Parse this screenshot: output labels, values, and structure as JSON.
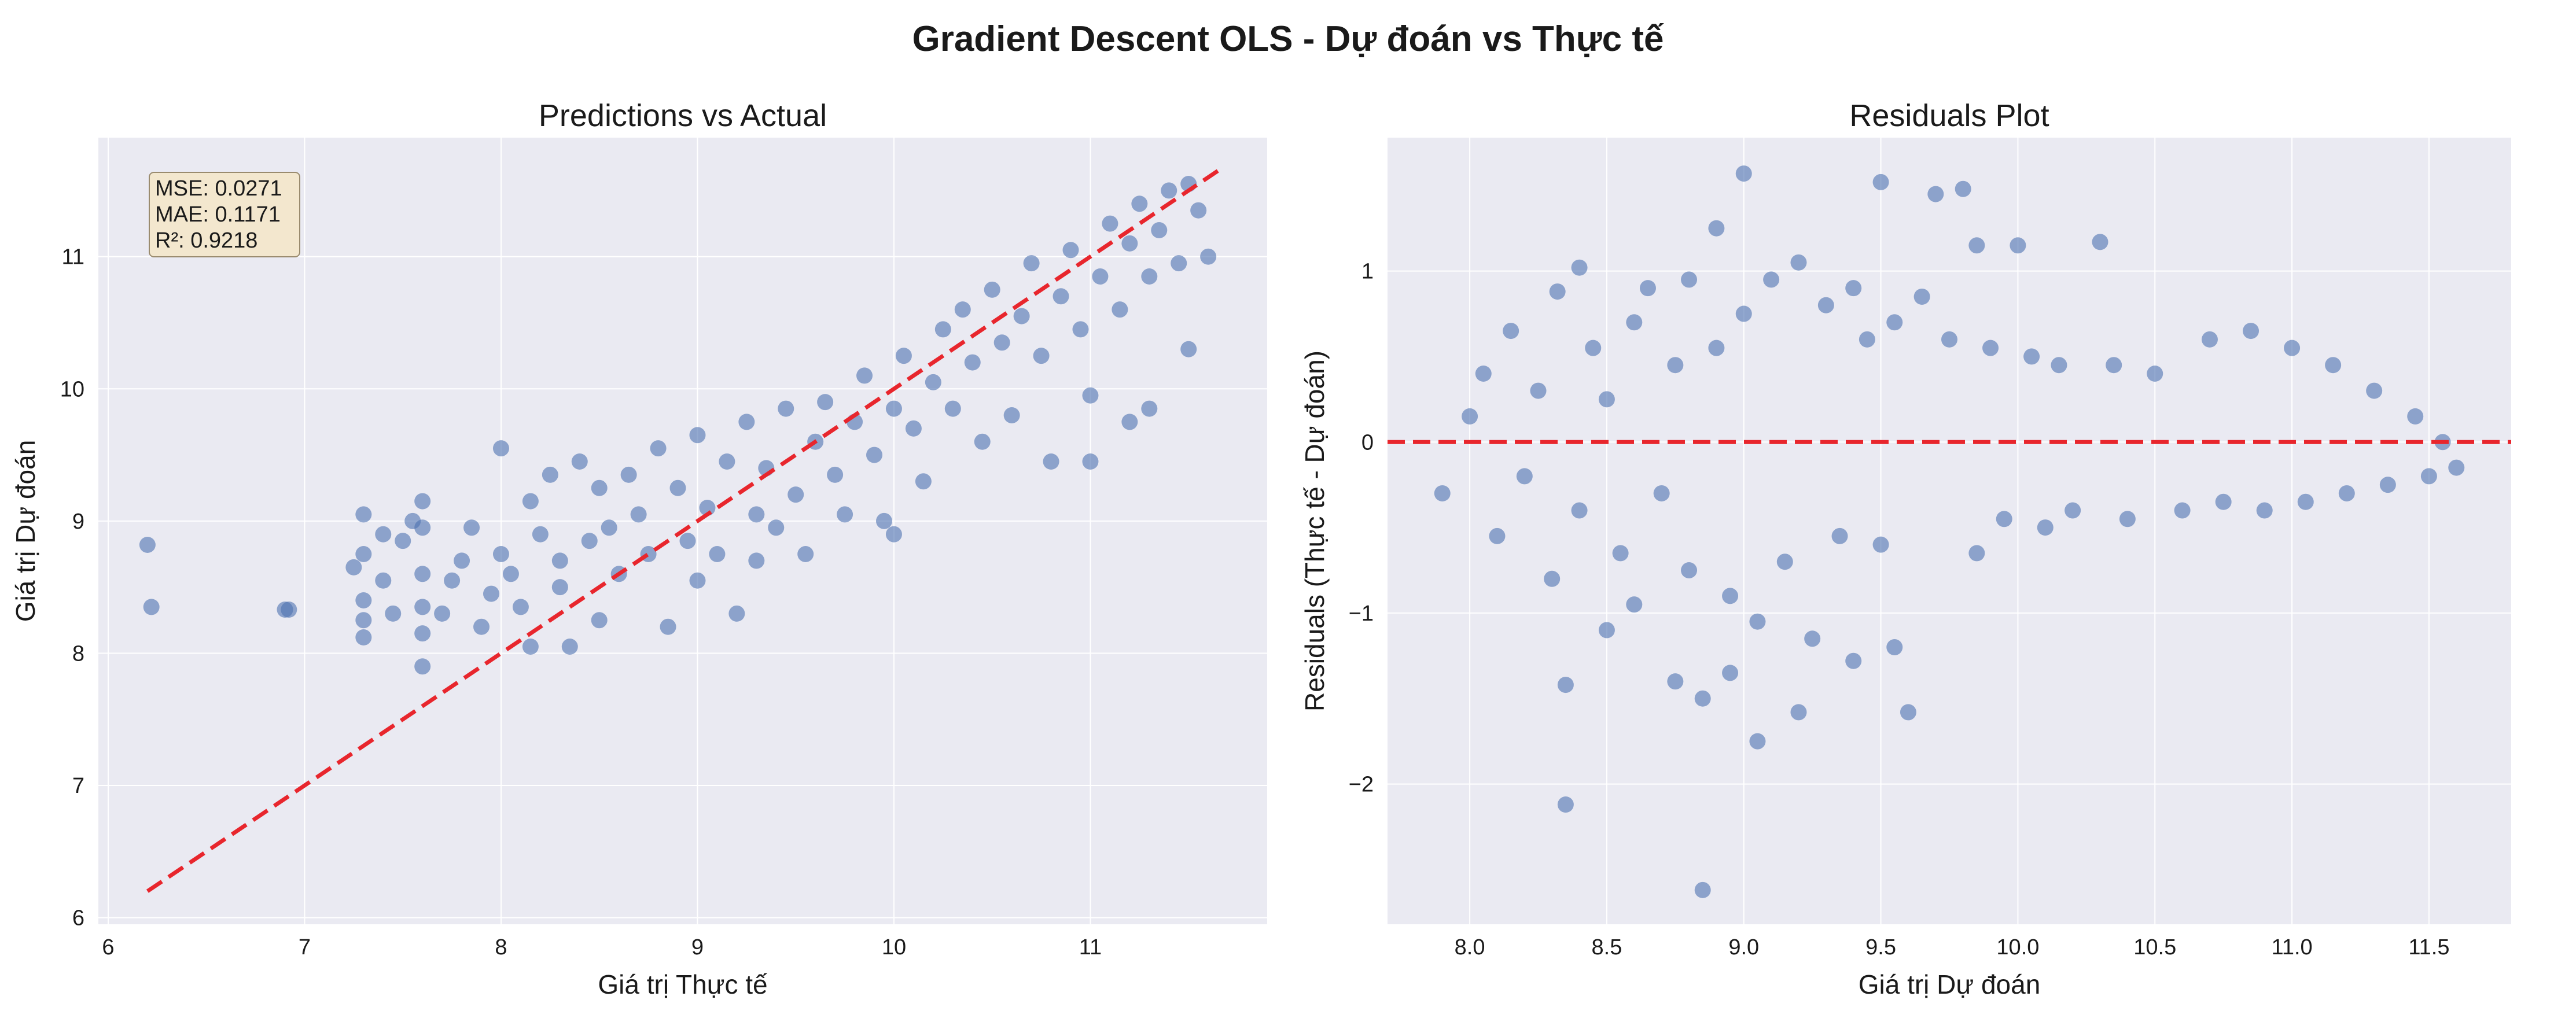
{
  "figure": {
    "title": "Gradient Descent OLS - Dự đoán vs Thực tế"
  },
  "colors": {
    "background": "#eaeaf2",
    "points": "#4c72b0",
    "reference_line": "#e8262d",
    "grid": "#ffffff",
    "metrics_box": "#f5e6c8"
  },
  "chart_data": [
    {
      "type": "scatter",
      "title": "Predictions vs Actual",
      "xlabel": "Giá trị Thực tế",
      "ylabel": "Giá trị Dự đoán",
      "xlim": [
        5.95,
        11.9
      ],
      "ylim": [
        5.95,
        11.9
      ],
      "xticks": [
        6,
        7,
        8,
        9,
        10,
        11
      ],
      "yticks": [
        6,
        7,
        8,
        9,
        10,
        11
      ],
      "grid": true,
      "annotations": [
        "MSE: 0.0271",
        "MAE: 0.1171",
        "R²: 0.9218"
      ],
      "annotation_placement": "top-left",
      "reference_line": {
        "style": "dashed",
        "from": [
          6.2,
          6.2
        ],
        "to": [
          11.65,
          11.65
        ]
      },
      "series": [
        {
          "name": "",
          "points": [
            [
              6.2,
              8.82
            ],
            [
              6.22,
              8.35
            ],
            [
              6.9,
              8.33
            ],
            [
              6.92,
              8.33
            ],
            [
              7.25,
              8.65
            ],
            [
              7.3,
              9.05
            ],
            [
              7.3,
              8.75
            ],
            [
              7.3,
              8.4
            ],
            [
              7.3,
              8.25
            ],
            [
              7.3,
              8.12
            ],
            [
              7.4,
              8.9
            ],
            [
              7.4,
              8.55
            ],
            [
              7.45,
              8.3
            ],
            [
              7.5,
              8.85
            ],
            [
              7.55,
              9.0
            ],
            [
              7.6,
              9.15
            ],
            [
              7.6,
              8.95
            ],
            [
              7.6,
              8.6
            ],
            [
              7.6,
              8.35
            ],
            [
              7.6,
              8.15
            ],
            [
              7.6,
              7.9
            ],
            [
              7.7,
              8.3
            ],
            [
              7.75,
              8.55
            ],
            [
              7.8,
              8.7
            ],
            [
              7.85,
              8.95
            ],
            [
              7.9,
              8.2
            ],
            [
              7.95,
              8.45
            ],
            [
              8.0,
              9.55
            ],
            [
              8.0,
              8.75
            ],
            [
              8.05,
              8.6
            ],
            [
              8.1,
              8.35
            ],
            [
              8.15,
              9.15
            ],
            [
              8.15,
              8.05
            ],
            [
              8.2,
              8.9
            ],
            [
              8.25,
              9.35
            ],
            [
              8.3,
              8.7
            ],
            [
              8.3,
              8.5
            ],
            [
              8.35,
              8.05
            ],
            [
              8.4,
              9.45
            ],
            [
              8.45,
              8.85
            ],
            [
              8.5,
              9.25
            ],
            [
              8.5,
              8.25
            ],
            [
              8.55,
              8.95
            ],
            [
              8.6,
              8.6
            ],
            [
              8.65,
              9.35
            ],
            [
              8.7,
              9.05
            ],
            [
              8.75,
              8.75
            ],
            [
              8.8,
              9.55
            ],
            [
              8.85,
              8.2
            ],
            [
              8.9,
              9.25
            ],
            [
              8.95,
              8.85
            ],
            [
              9.0,
              9.65
            ],
            [
              9.0,
              8.55
            ],
            [
              9.05,
              9.1
            ],
            [
              9.1,
              8.75
            ],
            [
              9.15,
              9.45
            ],
            [
              9.2,
              8.3
            ],
            [
              9.25,
              9.75
            ],
            [
              9.3,
              9.05
            ],
            [
              9.3,
              8.7
            ],
            [
              9.35,
              9.4
            ],
            [
              9.4,
              8.95
            ],
            [
              9.45,
              9.85
            ],
            [
              9.5,
              9.2
            ],
            [
              9.55,
              8.75
            ],
            [
              9.6,
              9.6
            ],
            [
              9.65,
              9.9
            ],
            [
              9.7,
              9.35
            ],
            [
              9.75,
              9.05
            ],
            [
              9.8,
              9.75
            ],
            [
              9.85,
              10.1
            ],
            [
              9.9,
              9.5
            ],
            [
              9.95,
              9.0
            ],
            [
              10.0,
              9.85
            ],
            [
              10.0,
              8.9
            ],
            [
              10.05,
              10.25
            ],
            [
              10.1,
              9.7
            ],
            [
              10.15,
              9.3
            ],
            [
              10.2,
              10.05
            ],
            [
              10.25,
              10.45
            ],
            [
              10.3,
              9.85
            ],
            [
              10.35,
              10.6
            ],
            [
              10.4,
              10.2
            ],
            [
              10.45,
              9.6
            ],
            [
              10.5,
              10.75
            ],
            [
              10.55,
              10.35
            ],
            [
              10.6,
              9.8
            ],
            [
              10.65,
              10.55
            ],
            [
              10.7,
              10.95
            ],
            [
              10.75,
              10.25
            ],
            [
              10.8,
              9.45
            ],
            [
              10.85,
              10.7
            ],
            [
              10.9,
              11.05
            ],
            [
              10.95,
              10.45
            ],
            [
              11.0,
              9.95
            ],
            [
              11.05,
              10.85
            ],
            [
              11.1,
              11.25
            ],
            [
              11.15,
              10.6
            ],
            [
              11.2,
              11.1
            ],
            [
              11.25,
              11.4
            ],
            [
              11.3,
              10.85
            ],
            [
              11.35,
              11.2
            ],
            [
              11.4,
              11.5
            ],
            [
              11.45,
              10.95
            ],
            [
              11.5,
              11.55
            ],
            [
              11.55,
              11.35
            ],
            [
              11.6,
              11.0
            ],
            [
              11.5,
              10.3
            ],
            [
              11.3,
              9.85
            ],
            [
              11.2,
              9.75
            ],
            [
              11.0,
              9.45
            ]
          ]
        }
      ]
    },
    {
      "type": "scatter",
      "title": "Residuals Plot",
      "xlabel": "Giá trị Dự đoán",
      "ylabel": "Residuals (Thực tế - Dự đoán)",
      "xlim": [
        7.7,
        11.8
      ],
      "ylim": [
        -2.82,
        1.78
      ],
      "xticks": [
        8.0,
        8.5,
        9.0,
        9.5,
        10.0,
        10.5,
        11.0,
        11.5
      ],
      "yticks": [
        -2,
        -1,
        0,
        1
      ],
      "grid": true,
      "reference_line": {
        "style": "dashed",
        "y": 0
      },
      "series": [
        {
          "name": "",
          "points": [
            [
              7.9,
              -0.3
            ],
            [
              8.0,
              0.15
            ],
            [
              8.05,
              0.4
            ],
            [
              8.1,
              -0.55
            ],
            [
              8.15,
              0.65
            ],
            [
              8.2,
              -0.2
            ],
            [
              8.25,
              0.3
            ],
            [
              8.3,
              -0.8
            ],
            [
              8.32,
              0.88
            ],
            [
              8.35,
              -2.12
            ],
            [
              8.35,
              -1.42
            ],
            [
              8.4,
              1.02
            ],
            [
              8.4,
              -0.4
            ],
            [
              8.45,
              0.55
            ],
            [
              8.5,
              -1.1
            ],
            [
              8.5,
              0.25
            ],
            [
              8.55,
              -0.65
            ],
            [
              8.6,
              0.7
            ],
            [
              8.6,
              -0.95
            ],
            [
              8.65,
              0.9
            ],
            [
              8.7,
              -0.3
            ],
            [
              8.75,
              -1.4
            ],
            [
              8.75,
              0.45
            ],
            [
              8.8,
              -0.75
            ],
            [
              8.8,
              0.95
            ],
            [
              8.85,
              -1.5
            ],
            [
              8.85,
              -2.62
            ],
            [
              8.9,
              1.25
            ],
            [
              8.9,
              0.55
            ],
            [
              8.95,
              -0.9
            ],
            [
              8.95,
              -1.35
            ],
            [
              9.0,
              1.57
            ],
            [
              9.0,
              0.75
            ],
            [
              9.05,
              -1.05
            ],
            [
              9.05,
              -1.75
            ],
            [
              9.1,
              0.95
            ],
            [
              9.15,
              -0.7
            ],
            [
              9.2,
              1.05
            ],
            [
              9.2,
              -1.58
            ],
            [
              9.25,
              -1.15
            ],
            [
              9.3,
              0.8
            ],
            [
              9.35,
              -0.55
            ],
            [
              9.4,
              0.9
            ],
            [
              9.4,
              -1.28
            ],
            [
              9.45,
              0.6
            ],
            [
              9.5,
              1.52
            ],
            [
              9.5,
              -0.6
            ],
            [
              9.55,
              0.7
            ],
            [
              9.55,
              -1.2
            ],
            [
              9.6,
              -1.58
            ],
            [
              9.65,
              0.85
            ],
            [
              9.7,
              1.45
            ],
            [
              9.75,
              0.6
            ],
            [
              9.8,
              1.48
            ],
            [
              9.85,
              1.15
            ],
            [
              9.85,
              -0.65
            ],
            [
              9.9,
              0.55
            ],
            [
              9.95,
              -0.45
            ],
            [
              10.0,
              1.15
            ],
            [
              10.05,
              0.5
            ],
            [
              10.1,
              -0.5
            ],
            [
              10.15,
              0.45
            ],
            [
              10.2,
              -0.4
            ],
            [
              10.3,
              1.17
            ],
            [
              10.35,
              0.45
            ],
            [
              10.4,
              -0.45
            ],
            [
              10.5,
              0.4
            ],
            [
              10.6,
              -0.4
            ],
            [
              10.7,
              0.6
            ],
            [
              10.75,
              -0.35
            ],
            [
              10.85,
              0.65
            ],
            [
              10.9,
              -0.4
            ],
            [
              11.0,
              0.55
            ],
            [
              11.05,
              -0.35
            ],
            [
              11.15,
              0.45
            ],
            [
              11.2,
              -0.3
            ],
            [
              11.3,
              0.3
            ],
            [
              11.35,
              -0.25
            ],
            [
              11.45,
              0.15
            ],
            [
              11.5,
              -0.2
            ],
            [
              11.55,
              0.0
            ],
            [
              11.6,
              -0.15
            ]
          ]
        }
      ]
    }
  ]
}
